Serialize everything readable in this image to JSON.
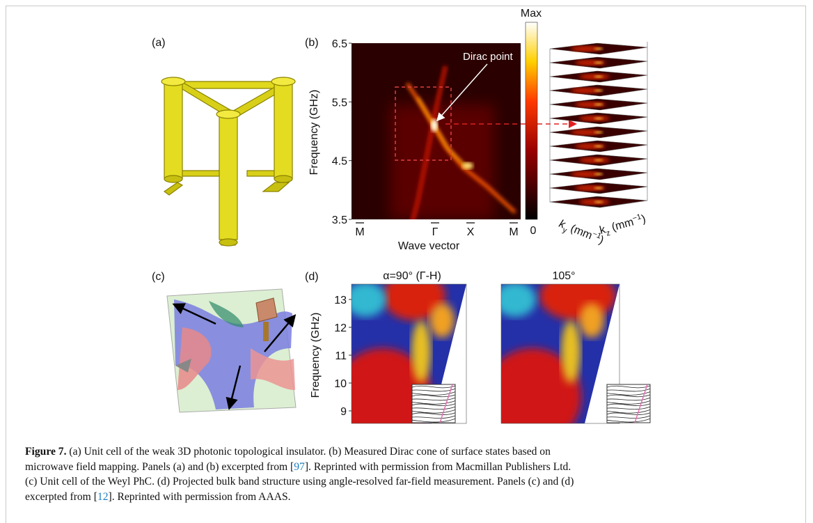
{
  "panels": {
    "a": {
      "label": "(a)"
    },
    "b": {
      "label": "(b)",
      "yticks": [
        "6.5",
        "5.5",
        "4.5",
        "3.5"
      ],
      "ylabel": "Frequency (GHz)",
      "xticks": [
        "M",
        "Γ",
        "X",
        "M"
      ],
      "xlabel": "Wave vector",
      "annotation": "Dirac point",
      "colorbar_max": "Max",
      "colorbar_min": "0",
      "ky_label": {
        "symbol": "k",
        "subscript": "y",
        "unit": " (mm",
        "exponent": "−1",
        "close": ")"
      },
      "kz_label": {
        "symbol": "k",
        "subscript": "z",
        "unit": " (mm",
        "exponent": "−1",
        "close": ")"
      }
    },
    "c": {
      "label": "(c)"
    },
    "d": {
      "label": "(d)",
      "titles": [
        "α=90° (Γ-H)",
        "105°"
      ],
      "yticks": [
        "13",
        "12",
        "11",
        "10",
        "9"
      ],
      "ylabel": "Frequency (GHz)"
    }
  },
  "caption": {
    "label": "Figure 7.",
    "lines": [
      {
        "before": " (a) Unit cell of the weak 3D photonic topological insulator. (b) Measured Dirac cone of surface states based on"
      },
      {
        "before": "microwave field mapping. Panels (a) and (b) excerpted from [",
        "ref": "97",
        "after": "]. Reprinted with permission from Macmillan Publishers Ltd."
      },
      {
        "before": "(c) Unit cell of the Weyl PhC. (d) Projected bulk band structure using angle-resolved far-field measurement. Panels (c) and (d)"
      },
      {
        "before": "excerpted from [",
        "ref": "12",
        "after": "]. Reprinted with permission from AAAS."
      }
    ]
  }
}
